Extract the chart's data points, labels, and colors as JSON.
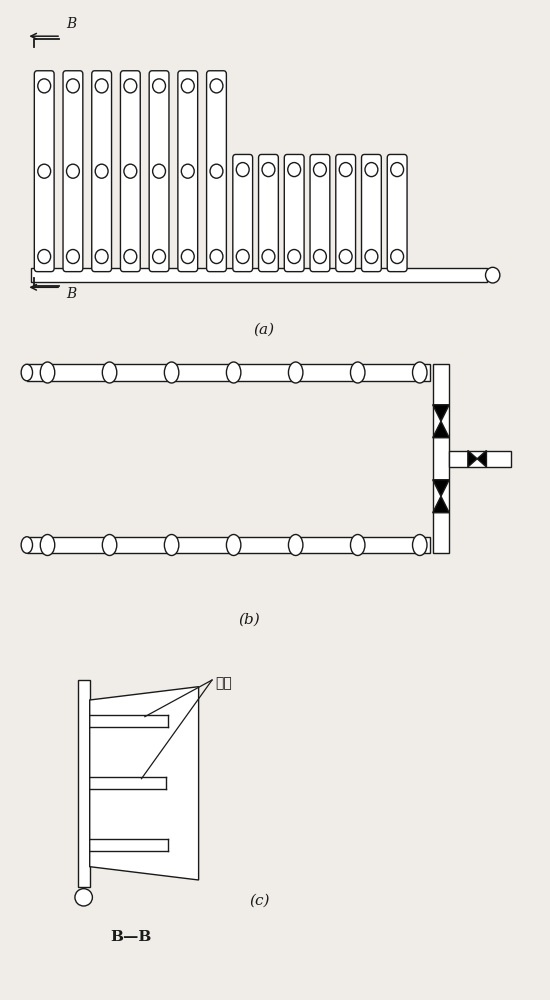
{
  "bg_color": "#f0ede8",
  "line_color": "#1a1a1a",
  "fig_label_a": "(a)",
  "fig_label_b": "(b)",
  "fig_label_c": "(c)",
  "bb_label": "B—B",
  "nozzle_label": "喂嘴"
}
